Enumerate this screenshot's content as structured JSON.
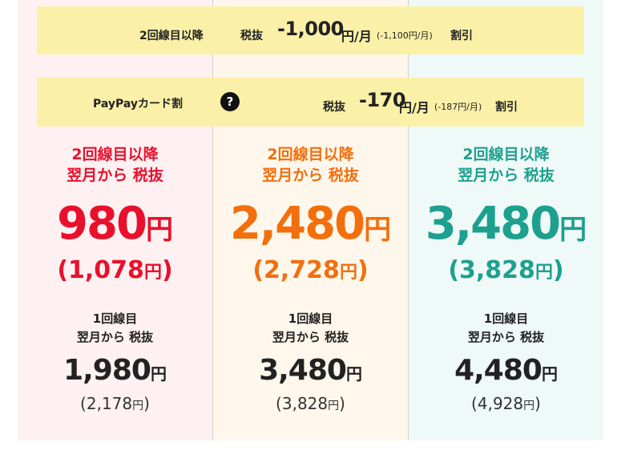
{
  "colors": {
    "plan1": "#e8112d",
    "plan2": "#f36f0d",
    "plan3": "#1ea08e",
    "band": "#fbf0a7"
  },
  "band1": {
    "label": "2回線目以降",
    "tax_label": "税抜",
    "amount": "-1,000",
    "unit": "円/月",
    "paren": "(-1,100円/月)",
    "suffix": "割引"
  },
  "band2": {
    "label": "PayPayカード割",
    "help_icon": "question-circle-icon",
    "help_glyph": "?",
    "tax_label": "税抜",
    "amount": "-170",
    "unit": "円/月",
    "paren": "(-187円/月)",
    "suffix": "割引"
  },
  "plans": [
    {
      "head1": "2回線目以降",
      "head2": "翌月から 税抜",
      "price": "980",
      "yen": "円",
      "price_incl_open": "(",
      "price_incl": "1,078",
      "price_incl_yen": "円",
      "price_incl_close": ")",
      "first_head1": "1回線目",
      "first_head2": "翌月から 税抜",
      "first_price": "1,980",
      "first_yen": "円",
      "first_incl_open": "(",
      "first_incl": "2,178",
      "first_incl_yen": "円",
      "first_incl_close": ")"
    },
    {
      "head1": "2回線目以降",
      "head2": "翌月から 税抜",
      "price": "2,480",
      "yen": "円",
      "price_incl_open": "(",
      "price_incl": "2,728",
      "price_incl_yen": "円",
      "price_incl_close": ")",
      "first_head1": "1回線目",
      "first_head2": "翌月から 税抜",
      "first_price": "3,480",
      "first_yen": "円",
      "first_incl_open": "(",
      "first_incl": "3,828",
      "first_incl_yen": "円",
      "first_incl_close": ")"
    },
    {
      "head1": "2回線目以降",
      "head2": "翌月から 税抜",
      "price": "3,480",
      "yen": "円",
      "price_incl_open": "(",
      "price_incl": "3,828",
      "price_incl_yen": "円",
      "price_incl_close": ")",
      "first_head1": "1回線目",
      "first_head2": "翌月から 税抜",
      "first_price": "4,480",
      "first_yen": "円",
      "first_incl_open": "(",
      "first_incl": "4,928",
      "first_incl_yen": "円",
      "first_incl_close": ")"
    }
  ]
}
